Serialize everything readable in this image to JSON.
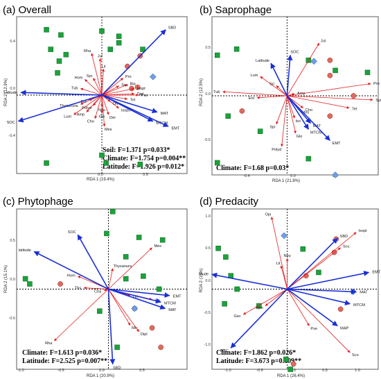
{
  "chart_data": [
    {
      "type": "scatter",
      "title": "(a) Overall",
      "xlabel": "RDA 1 (19.4%)",
      "ylabel": "RDA 2 (12.9%)",
      "xlim": [
        -1.0,
        1.0
      ],
      "ylim": [
        -0.6,
        0.6
      ],
      "xticks": [
        "0.0",
        "0.5"
      ],
      "yticks": [
        "0.4",
        "0.0",
        "-0.4"
      ],
      "stats": [
        "Soil: F=1.371  p=0.033*",
        "Climate: F=1.754  p=0.004**",
        "Latitude: F=1.926  p=0.012*"
      ],
      "env_arrows": [
        {
          "label": "SBD",
          "x": 0.75,
          "y": 0.5
        },
        {
          "label": "Latitude",
          "x": -0.95,
          "y": 0.02
        },
        {
          "label": "SOC",
          "x": -0.98,
          "y": -0.2
        },
        {
          "label": "MAT",
          "x": 0.65,
          "y": -0.13
        },
        {
          "label": "MTCM",
          "x": 0.6,
          "y": -0.2
        },
        {
          "label": "EMT",
          "x": 0.78,
          "y": -0.24
        }
      ],
      "species_arrows": [
        {
          "label": "Rha",
          "x": -0.12,
          "y": 0.32
        },
        {
          "label": "Jul",
          "x": -0.02,
          "y": 0.28
        },
        {
          "label": "Lit",
          "x": 0.02,
          "y": 0.2
        },
        {
          "label": "Hom",
          "x": -0.2,
          "y": 0.12
        },
        {
          "label": "Tub",
          "x": -0.25,
          "y": 0.05
        },
        {
          "label": "Spi",
          "x": -0.1,
          "y": 0.13
        },
        {
          "label": "Pro",
          "x": 0.25,
          "y": 0.13
        },
        {
          "label": "Scu",
          "x": 0.2,
          "y": 0.07
        },
        {
          "label": "Bla",
          "x": 0.3,
          "y": 0.08
        },
        {
          "label": "Isopt",
          "x": 0.38,
          "y": 0.05
        },
        {
          "label": "Dipl",
          "x": 0.38,
          "y": 0.01
        },
        {
          "label": "Pse",
          "x": 0.43,
          "y": 0.0
        },
        {
          "label": "Tet",
          "x": 0.3,
          "y": -0.03
        },
        {
          "label": "Isopo",
          "x": 0.2,
          "y": -0.1
        },
        {
          "label": "Der",
          "x": 0.08,
          "y": -0.15
        },
        {
          "label": "Glo",
          "x": 0.0,
          "y": -0.14
        },
        {
          "label": "Mes",
          "x": 0.03,
          "y": -0.24
        },
        {
          "label": "Cho",
          "x": -0.08,
          "y": -0.18
        },
        {
          "label": "Amp",
          "x": -0.18,
          "y": -0.13
        },
        {
          "label": "Lum",
          "x": -0.33,
          "y": -0.15
        },
        {
          "label": "Thysanura",
          "x": -0.25,
          "y": -0.07
        },
        {
          "label": "Polyd",
          "x": -0.1,
          "y": -0.08
        },
        {
          "label": "Ent",
          "x": -0.15,
          "y": -0.04
        },
        {
          "label": "Ort",
          "x": 0.1,
          "y": -0.05
        },
        {
          "label": "Neu",
          "x": 0.0,
          "y": -0.09
        }
      ],
      "sites": {
        "square": [
          [
            -0.65,
            0.5
          ],
          [
            -0.6,
            0.35
          ],
          [
            -0.48,
            0.46
          ],
          [
            -0.5,
            0.26
          ],
          [
            -0.42,
            0.31
          ],
          [
            -0.52,
            0.17
          ],
          [
            0.0,
            0.49
          ],
          [
            0.2,
            0.45
          ],
          [
            0.1,
            0.35
          ],
          [
            0.2,
            0.4
          ],
          [
            0.48,
            0.35
          ],
          [
            0.0,
            -0.46
          ],
          [
            -0.65,
            -0.52
          ],
          [
            0.05,
            -0.52
          ],
          [
            0.45,
            -0.53
          ]
        ],
        "circle": [
          [
            0.45,
            0.3
          ],
          [
            0.3,
            0.22
          ],
          [
            0.35,
            0.05
          ],
          [
            0.42,
            0.06
          ]
        ],
        "diamond": [
          [
            0.6,
            0.14
          ]
        ]
      }
    },
    {
      "type": "scatter",
      "title": "(b) Saprophage",
      "xlabel": "RDA 1 (21.8%)",
      "ylabel": "RDA 2 (12.5%)",
      "xlim": [
        -0.7,
        0.85
      ],
      "ylim": [
        -0.78,
        0.78
      ],
      "xticks": [
        "-0.4",
        "0.0",
        "0.4"
      ],
      "yticks": [
        "0.5",
        "0.0",
        "-0.5"
      ],
      "stats": [
        "Climate: F=1.68  p=0.03*"
      ],
      "env_arrows": [
        {
          "label": "Latitude",
          "x": -0.15,
          "y": 0.32
        },
        {
          "label": "SOC",
          "x": 0.03,
          "y": 0.4
        },
        {
          "label": "MAT",
          "x": 0.22,
          "y": -0.27
        },
        {
          "label": "MTCM",
          "x": 0.2,
          "y": -0.33
        },
        {
          "label": "EMT",
          "x": 0.4,
          "y": -0.44
        }
      ],
      "species_arrows": [
        {
          "label": "Jul",
          "x": 0.3,
          "y": 0.52
        },
        {
          "label": "Lum",
          "x": -0.25,
          "y": 0.19
        },
        {
          "label": "Tub",
          "x": -0.6,
          "y": 0.04
        },
        {
          "label": "Sri",
          "x": -0.1,
          "y": 0.1
        },
        {
          "label": "Spi",
          "x": -0.1,
          "y": -0.28
        },
        {
          "label": "Polyd",
          "x": -0.05,
          "y": -0.5
        },
        {
          "label": "Glo",
          "x": 0.08,
          "y": -0.37
        },
        {
          "label": "Cho",
          "x": 0.15,
          "y": -0.12
        },
        {
          "label": "Amp",
          "x": 0.07,
          "y": 0.02
        },
        {
          "label": "Ent",
          "x": -0.28,
          "y": -0.02
        },
        {
          "label": "Iso",
          "x": 0.07,
          "y": -0.22
        },
        {
          "label": "Pro",
          "x": 0.78,
          "y": 0.12
        },
        {
          "label": "Sym",
          "x": 0.8,
          "y": -0.04
        },
        {
          "label": "Tet",
          "x": 0.58,
          "y": -0.12
        },
        {
          "label": "Mes",
          "x": 0.12,
          "y": -0.14
        }
      ],
      "sites": {
        "square": [
          [
            -0.65,
            0.4
          ],
          [
            -0.47,
            0.46
          ],
          [
            0.2,
            0.35
          ],
          [
            0.45,
            0.25
          ],
          [
            0.75,
            0.23
          ],
          [
            -0.55,
            -0.2
          ],
          [
            -0.25,
            -0.35
          ],
          [
            0.2,
            -0.62
          ],
          [
            -0.65,
            -0.66
          ]
        ],
        "circle": [
          [
            0.4,
            0.35
          ],
          [
            0.4,
            0.2
          ],
          [
            0.62,
            0.0
          ],
          [
            -0.42,
            -0.15
          ],
          [
            0.4,
            -0.2
          ]
        ],
        "diamond": [
          [
            0.25,
            0.34
          ],
          [
            0.45,
            -0.78
          ]
        ]
      }
    },
    {
      "type": "scatter",
      "title": "(c) Phytophage",
      "xlabel": "RDA 1 (20.9%)",
      "ylabel": "RDA 2 (15.1%)",
      "xlim": [
        -1.05,
        0.9
      ],
      "ylim": [
        -0.62,
        0.62
      ],
      "xticks": [
        "-1.0",
        "-0.5",
        "0.0",
        "0.5"
      ],
      "yticks": [
        "0.5",
        "0.0",
        "-0.5"
      ],
      "stats": [
        "Climate: F=1.613  p=0.036*",
        "Latitude: F=2.525  p=0.007**"
      ],
      "env_arrows": [
        {
          "label": "SOC",
          "x": -0.35,
          "y": 0.42
        },
        {
          "label": "latitude",
          "x": -0.85,
          "y": 0.29
        },
        {
          "label": "EMT",
          "x": 0.7,
          "y": -0.05
        },
        {
          "label": "MTCM",
          "x": 0.6,
          "y": -0.1
        },
        {
          "label": "MAT",
          "x": 0.65,
          "y": -0.15
        },
        {
          "label": "SBD",
          "x": 0.05,
          "y": -0.58
        }
      ],
      "species_arrows": [
        {
          "label": "Mes",
          "x": 0.5,
          "y": 0.32
        },
        {
          "label": "Thysanura",
          "x": 0.05,
          "y": 0.16
        },
        {
          "label": "Hom",
          "x": -0.35,
          "y": 0.1
        },
        {
          "label": "Ths",
          "x": -0.28,
          "y": 0.01
        },
        {
          "label": "Cha",
          "x": -0.05,
          "y": -0.01
        },
        {
          "label": "Rha",
          "x": -0.62,
          "y": -0.4
        },
        {
          "label": "Mic",
          "x": 0.25,
          "y": -0.28
        },
        {
          "label": "Dipl",
          "x": 0.35,
          "y": -0.33
        },
        {
          "label": "Ort",
          "x": 0.25,
          "y": -0.05
        },
        {
          "label": "Iso",
          "x": 0.5,
          "y": -0.08
        }
      ],
      "sites": {
        "square": [
          [
            0.05,
            0.6
          ],
          [
            -0.02,
            0.43
          ],
          [
            0.35,
            0.4
          ],
          [
            0.62,
            0.38
          ],
          [
            0.2,
            0.25
          ],
          [
            -0.95,
            0.08
          ],
          [
            -0.9,
            0.04
          ],
          [
            0.4,
            0.1
          ],
          [
            0.2,
            0.08
          ],
          [
            0.58,
            0.0
          ],
          [
            -0.1,
            -0.17
          ],
          [
            0.1,
            -0.45
          ]
        ],
        "circle": [
          [
            0.3,
            -0.15
          ],
          [
            0.5,
            -0.3
          ],
          [
            0.6,
            -0.45
          ],
          [
            -0.55,
            0.04
          ]
        ],
        "diamond": [
          [
            0.3,
            -0.15
          ]
        ]
      }
    },
    {
      "type": "scatter",
      "title": "(d) Predacity",
      "xlabel": "RDA 1 (26.4%)",
      "ylabel": "RDA 2 (15%)",
      "xlim": [
        -1.2,
        1.45
      ],
      "ylim": [
        -1.2,
        1.2
      ],
      "xticks": [
        "-1.0",
        "-0.5",
        "0.0",
        "0.5",
        "1.0"
      ],
      "yticks": [
        "1.0",
        "0.5",
        "0.0",
        "-0.5",
        "-1.0"
      ],
      "stats": [
        "Climate: F=1.862  p=0.026*",
        "Latitude: F=3.673  p=0.009**"
      ],
      "env_arrows": [
        {
          "label": "Mude",
          "x": -1.2,
          "y": 0.22
        },
        {
          "label": "SOC",
          "x": -0.9,
          "y": -0.88
        },
        {
          "label": "EMT",
          "x": 1.3,
          "y": 0.25
        },
        {
          "label": "MAT",
          "x": 1.1,
          "y": -0.04
        },
        {
          "label": "MTCM",
          "x": 1.0,
          "y": -0.22
        },
        {
          "label": "MAP",
          "x": 0.8,
          "y": -0.55
        },
        {
          "label": "SBD",
          "x": 0.8,
          "y": 0.76
        }
      ],
      "species_arrows": [
        {
          "label": "Opi",
          "x": -0.25,
          "y": 1.08
        },
        {
          "label": "Isopt",
          "x": 1.1,
          "y": 0.85
        },
        {
          "label": "Scu",
          "x": 0.85,
          "y": 0.62
        },
        {
          "label": "Neu",
          "x": 0.0,
          "y": 0.46
        },
        {
          "label": "Lit",
          "x": -0.1,
          "y": 0.35
        },
        {
          "label": "Sym",
          "x": -0.35,
          "y": -0.25
        },
        {
          "label": "Gec",
          "x": -0.7,
          "y": -0.38
        },
        {
          "label": "Pse",
          "x": 0.35,
          "y": -0.55
        },
        {
          "label": "Sco",
          "x": 1.0,
          "y": -0.95
        }
      ],
      "sites": {
        "square": [
          [
            -1.1,
            0.61
          ],
          [
            -0.98,
            0.48
          ],
          [
            -0.9,
            0.2
          ],
          [
            -0.8,
            0.0
          ],
          [
            0.25,
            0.6
          ],
          [
            0.5,
            0.25
          ],
          [
            -0.45,
            -0.25
          ],
          [
            -1.0,
            -0.22
          ],
          [
            -0.02,
            -1.05
          ],
          [
            0.05,
            -1.2
          ]
        ],
        "circle": [
          [
            0.78,
            0.75
          ],
          [
            0.3,
            0.2
          ],
          [
            0.75,
            0.55
          ],
          [
            0.85,
            -0.3
          ],
          [
            0.1,
            -1.12
          ]
        ],
        "diamond": [
          [
            -0.05,
            0.8
          ],
          [
            1.05,
            -0.04
          ]
        ]
      }
    }
  ]
}
